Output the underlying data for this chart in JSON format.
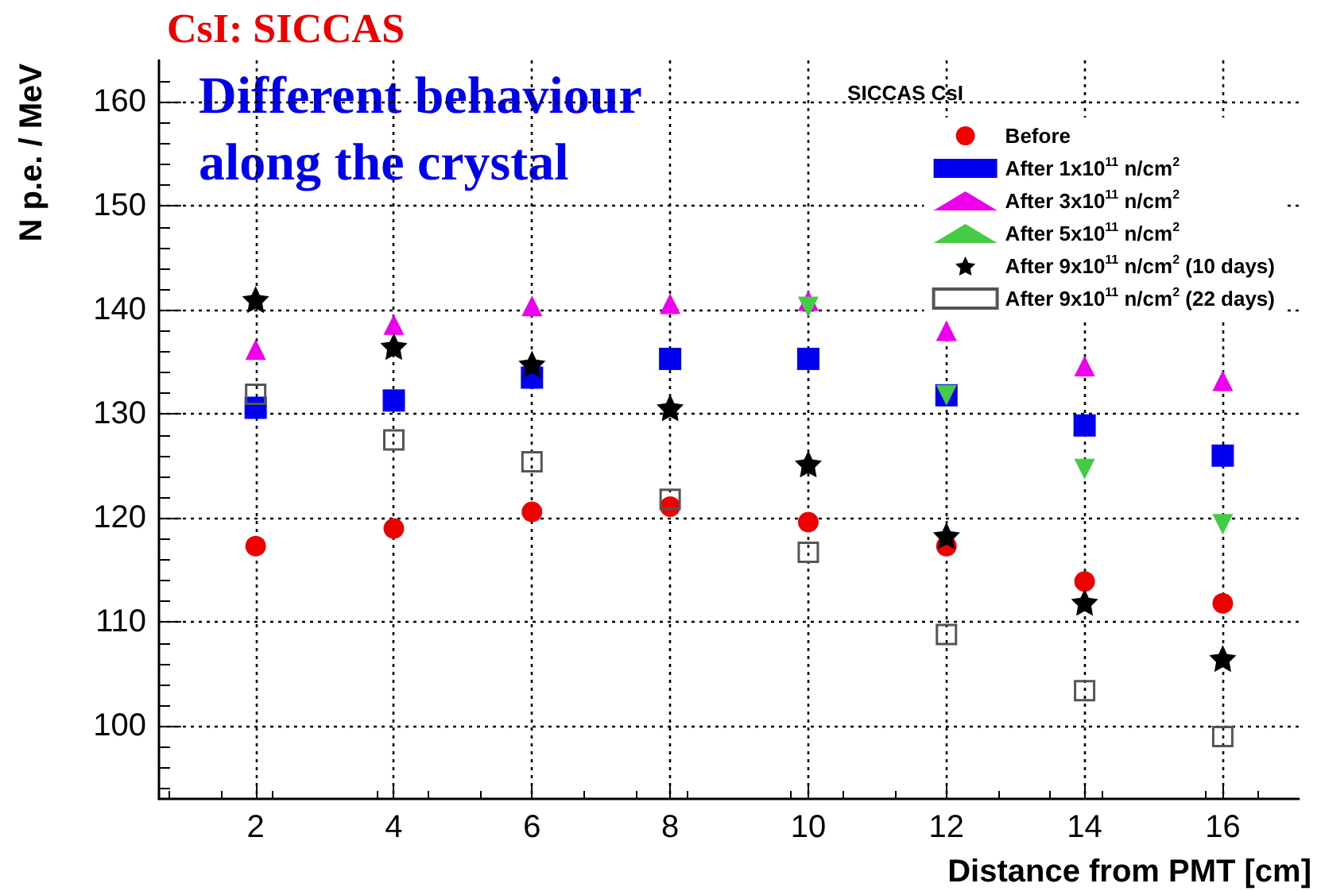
{
  "chart_data": {
    "type": "scatter",
    "title": "CsI: SICCAS",
    "xlabel": "Distance from PMT [cm]",
    "ylabel": "N p.e. / MeV",
    "legend_title": "SICCAS CsI",
    "annotations": [
      "Different behaviour along the crystal"
    ],
    "x": [
      2,
      4,
      6,
      8,
      10,
      12,
      14,
      16
    ],
    "series": [
      {
        "name": "Before",
        "color": "#ee0000",
        "marker": "circle",
        "values": [
          117.3,
          119.0,
          120.6,
          121.1,
          119.6,
          117.3,
          113.9,
          111.8
        ]
      },
      {
        "name": "After 1x10$^{11}$ n/cm$^{2}$",
        "color": "#0000ee",
        "marker": "square",
        "values": [
          130.6,
          131.3,
          133.5,
          135.3,
          135.3,
          131.8,
          128.9,
          126.0
        ]
      },
      {
        "name": "After 3x10$^{11}$ n/cm$^{2}$",
        "color": "#ee00ee",
        "marker": "triangle",
        "values": [
          136.2,
          138.6,
          140.4,
          140.6,
          140.9,
          138.0,
          134.6,
          133.2
        ]
      },
      {
        "name": "After 5x10$^{11}$ n/cm$^{2}$",
        "color": "#44cc44",
        "marker": "triangle-down",
        "values": [
          null,
          null,
          null,
          null,
          140.3,
          131.8,
          124.7,
          119.4
        ]
      },
      {
        "name": "After 9x10$^{11}$ n/cm$^{2}$ (10 days)",
        "color": "#000000",
        "marker": "star",
        "values": [
          141.0,
          136.5,
          134.8,
          130.6,
          125.2,
          118.3,
          111.9,
          106.5
        ]
      },
      {
        "name": "After 9x10$^{11}$ n/cm$^{2}$ (22 days)",
        "color": "#555555",
        "marker": "square-open",
        "values": [
          131.9,
          127.5,
          125.4,
          121.8,
          116.7,
          108.8,
          103.4,
          99.0
        ]
      }
    ],
    "xlim": [
      0.6,
      17.1
    ],
    "xticks": [
      2,
      4,
      6,
      8,
      10,
      12,
      14,
      16
    ],
    "ylim": [
      93,
      164
    ],
    "yticks": [
      100,
      110,
      120,
      130,
      140,
      150,
      160
    ],
    "grid": true,
    "legend": "top right"
  }
}
